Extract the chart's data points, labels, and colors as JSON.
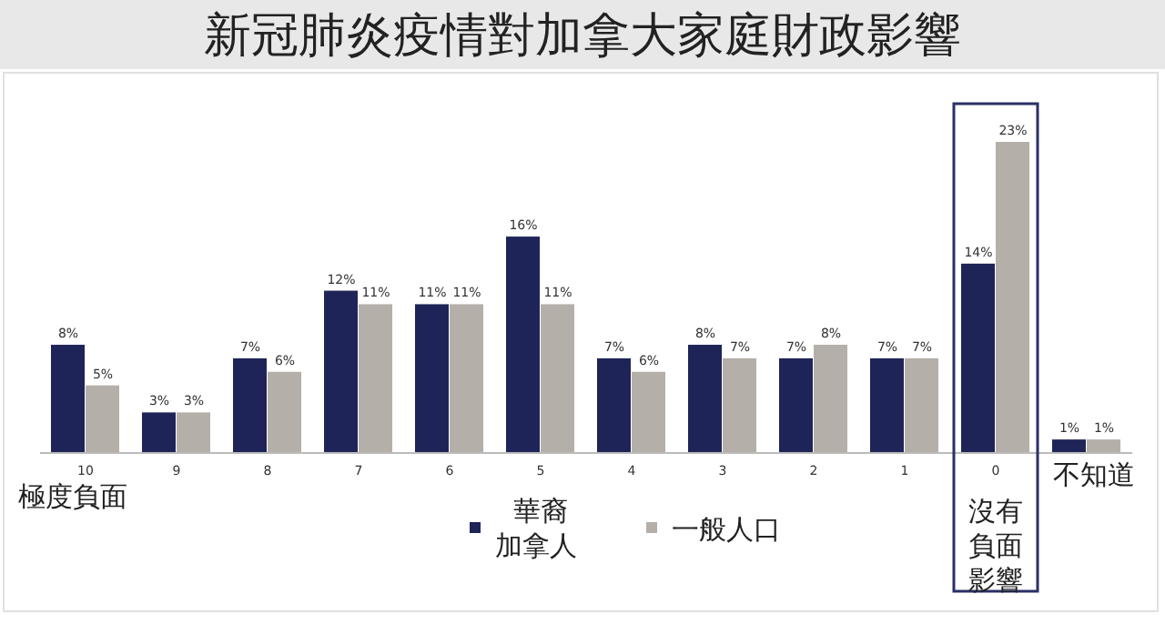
{
  "chart_data": {
    "type": "bar",
    "title": "新冠肺炎疫情對加拿大家庭財政影響",
    "categories": [
      "10",
      "9",
      "8",
      "7",
      "6",
      "5",
      "4",
      "3",
      "2",
      "1",
      "0",
      "不知道"
    ],
    "series": [
      {
        "name": "華裔加拿人",
        "color": "#1f2458",
        "values": [
          8,
          3,
          7,
          12,
          11,
          16,
          7,
          8,
          7,
          7,
          14,
          1
        ],
        "value_labels": [
          "8%",
          "3%",
          "7%",
          "12%",
          "11%",
          "16%",
          "7%",
          "8%",
          "7%",
          "7%",
          "14%",
          "1%"
        ]
      },
      {
        "name": "一般人口",
        "color": "#b4afa9",
        "values": [
          5,
          3,
          6,
          11,
          11,
          11,
          6,
          7,
          8,
          7,
          23,
          1
        ],
        "value_labels": [
          "5%",
          "3%",
          "6%",
          "11%",
          "11%",
          "11%",
          "6%",
          "7%",
          "8%",
          "7%",
          "23%",
          "1%"
        ]
      }
    ],
    "legend": "bottom",
    "grid": false,
    "annotations": [
      "極度負面",
      "沒有負面影響"
    ]
  }
}
